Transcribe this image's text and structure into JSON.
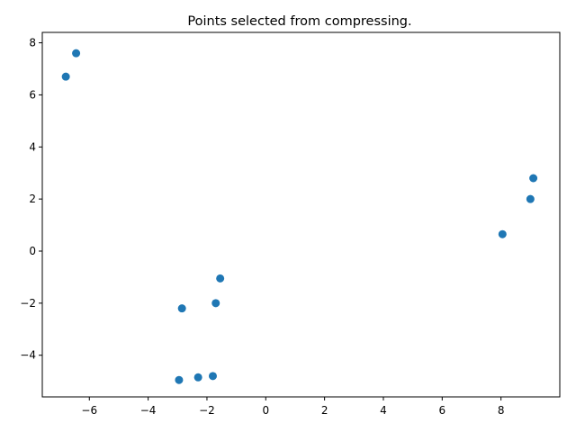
{
  "chart_data": {
    "type": "scatter",
    "title": "Points selected from compressing.",
    "xlabel": "",
    "ylabel": "",
    "xlim": [
      -7.6,
      10.0
    ],
    "ylim": [
      -5.6,
      8.4
    ],
    "xticks": [
      -6,
      -4,
      -2,
      0,
      2,
      4,
      6,
      8
    ],
    "yticks": [
      -4,
      -2,
      0,
      2,
      4,
      6,
      8
    ],
    "grid": false,
    "color": "#1f77b4",
    "x": [
      -6.45,
      -6.8,
      9.1,
      9.0,
      8.05,
      -1.55,
      -1.7,
      -2.85,
      -1.8,
      -2.3,
      -2.95
    ],
    "y": [
      7.6,
      6.7,
      2.8,
      2.0,
      0.65,
      -1.05,
      -2.0,
      -2.2,
      -4.8,
      -4.85,
      -4.95
    ]
  }
}
